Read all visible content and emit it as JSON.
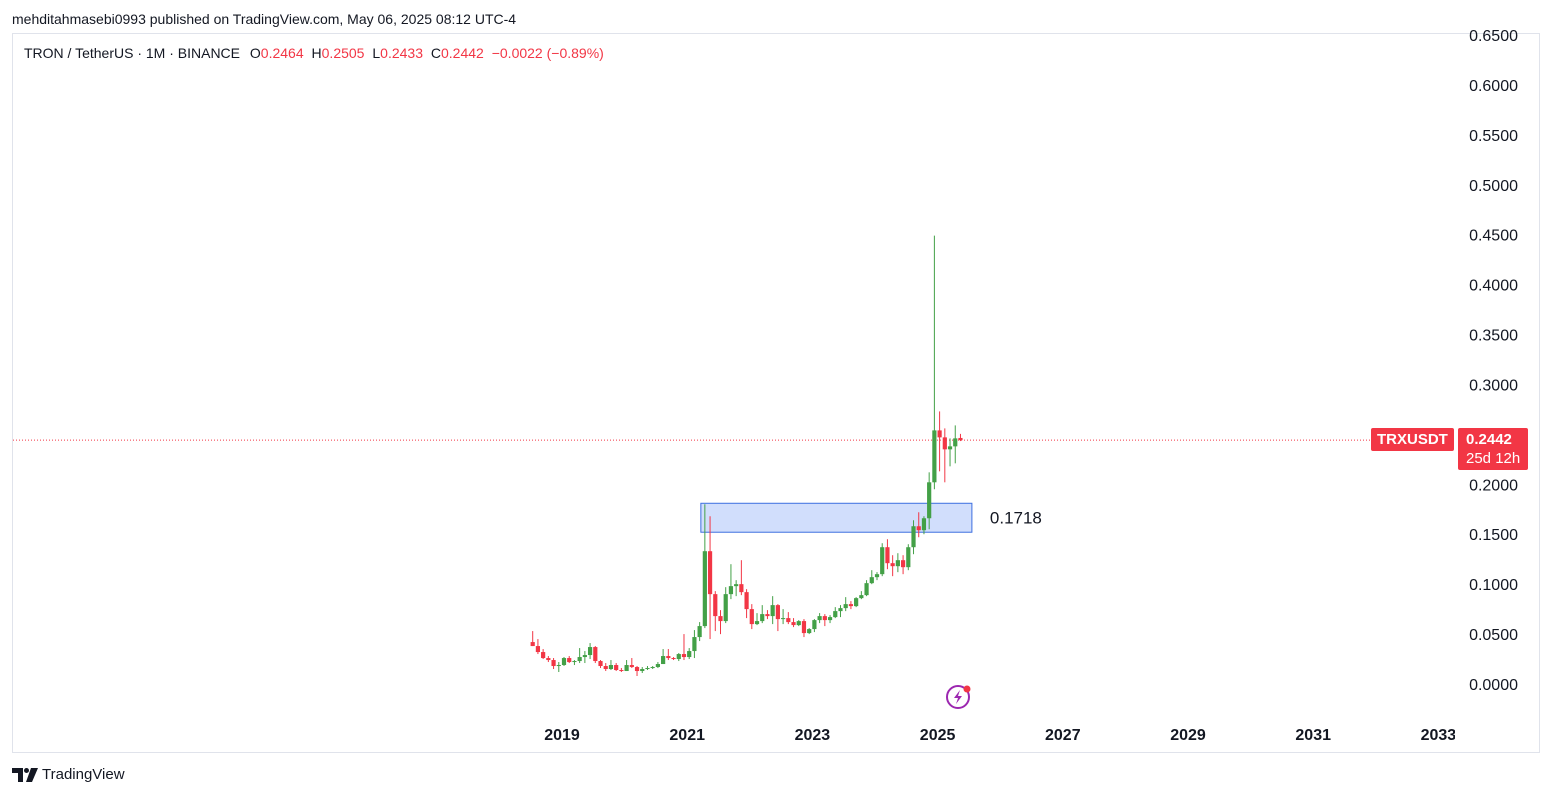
{
  "header": {
    "published_line": "mehditahmasebi0993 published on TradingView.com, May 06, 2025 08:12 UTC-4"
  },
  "legend": {
    "symbol": "TRON / TetherUS · 1M · BINANCE",
    "o_label": "O",
    "o_value": "0.2464",
    "h_label": "H",
    "h_value": "0.2505",
    "l_label": "L",
    "l_value": "0.2433",
    "c_label": "C",
    "c_value": "0.2442",
    "change": "−0.0022 (−0.89%)"
  },
  "badges": {
    "symbol": "TRXUSDT",
    "price": "0.2442",
    "countdown": "25d 12h"
  },
  "footer": {
    "brand": "TradingView"
  },
  "colors": {
    "up": "#26a69a",
    "up_drawn": "#43a047",
    "down": "#f23645",
    "zone_fill": "#c9d8fb",
    "zone_border": "#3d6fe0"
  },
  "chart_data": {
    "type": "candlestick",
    "symbol": "TRXUSDT",
    "interval": "1M",
    "exchange": "BINANCE",
    "yticks": [
      "0.6500",
      "0.6000",
      "0.5500",
      "0.5000",
      "0.4500",
      "0.4000",
      "0.3500",
      "0.3000",
      "0.2500",
      "0.2000",
      "0.1500",
      "0.1000",
      "0.0500",
      "0.0000"
    ],
    "ytick_values": [
      0.65,
      0.6,
      0.55,
      0.5,
      0.45,
      0.4,
      0.35,
      0.3,
      0.25,
      0.2,
      0.15,
      0.1,
      0.05,
      0.0
    ],
    "xticks": [
      "2019",
      "2021",
      "2023",
      "2025",
      "2027",
      "2029",
      "2031",
      "2033"
    ],
    "xtick_years": [
      2019,
      2021,
      2023,
      2025,
      2027,
      2029,
      2031,
      2033
    ],
    "ylim": [
      0.0,
      0.65
    ],
    "last_price": 0.2442,
    "zone": {
      "from": "2021-04",
      "to": "2025-07",
      "low": 0.152,
      "high": 0.181,
      "label": "0.1718"
    },
    "candles": [
      [
        "2018-07",
        0.042,
        0.053,
        0.038,
        0.038
      ],
      [
        "2018-08",
        0.038,
        0.045,
        0.03,
        0.032
      ],
      [
        "2018-09",
        0.032,
        0.035,
        0.025,
        0.026
      ],
      [
        "2018-10",
        0.026,
        0.028,
        0.022,
        0.024
      ],
      [
        "2018-11",
        0.024,
        0.026,
        0.015,
        0.018
      ],
      [
        "2018-12",
        0.018,
        0.022,
        0.012,
        0.019
      ],
      [
        "2019-01",
        0.019,
        0.027,
        0.018,
        0.026
      ],
      [
        "2019-02",
        0.026,
        0.028,
        0.021,
        0.022
      ],
      [
        "2019-03",
        0.022,
        0.024,
        0.019,
        0.023
      ],
      [
        "2019-04",
        0.023,
        0.036,
        0.021,
        0.027
      ],
      [
        "2019-05",
        0.027,
        0.033,
        0.021,
        0.029
      ],
      [
        "2019-06",
        0.029,
        0.041,
        0.025,
        0.037
      ],
      [
        "2019-07",
        0.037,
        0.038,
        0.021,
        0.023
      ],
      [
        "2019-08",
        0.023,
        0.024,
        0.016,
        0.018
      ],
      [
        "2019-09",
        0.018,
        0.021,
        0.013,
        0.015
      ],
      [
        "2019-10",
        0.015,
        0.024,
        0.014,
        0.019
      ],
      [
        "2019-11",
        0.019,
        0.021,
        0.013,
        0.014
      ],
      [
        "2019-12",
        0.014,
        0.016,
        0.012,
        0.013
      ],
      [
        "2020-01",
        0.013,
        0.024,
        0.013,
        0.019
      ],
      [
        "2020-02",
        0.019,
        0.026,
        0.016,
        0.017
      ],
      [
        "2020-03",
        0.017,
        0.018,
        0.008,
        0.013
      ],
      [
        "2020-04",
        0.013,
        0.017,
        0.011,
        0.015
      ],
      [
        "2020-05",
        0.015,
        0.018,
        0.014,
        0.016
      ],
      [
        "2020-06",
        0.016,
        0.018,
        0.015,
        0.017
      ],
      [
        "2020-07",
        0.017,
        0.022,
        0.016,
        0.02
      ],
      [
        "2020-08",
        0.02,
        0.035,
        0.02,
        0.028
      ],
      [
        "2020-09",
        0.028,
        0.035,
        0.024,
        0.026
      ],
      [
        "2020-10",
        0.026,
        0.027,
        0.024,
        0.025
      ],
      [
        "2020-11",
        0.025,
        0.031,
        0.023,
        0.03
      ],
      [
        "2020-12",
        0.03,
        0.05,
        0.024,
        0.027
      ],
      [
        "2021-01",
        0.027,
        0.036,
        0.025,
        0.033
      ],
      [
        "2021-02",
        0.033,
        0.054,
        0.026,
        0.047
      ],
      [
        "2021-03",
        0.047,
        0.062,
        0.043,
        0.058
      ],
      [
        "2021-04",
        0.058,
        0.18,
        0.056,
        0.133
      ],
      [
        "2021-05",
        0.133,
        0.168,
        0.045,
        0.09
      ],
      [
        "2021-06",
        0.09,
        0.093,
        0.053,
        0.068
      ],
      [
        "2021-07",
        0.068,
        0.074,
        0.05,
        0.063
      ],
      [
        "2021-08",
        0.063,
        0.097,
        0.061,
        0.09
      ],
      [
        "2021-09",
        0.09,
        0.12,
        0.085,
        0.098
      ],
      [
        "2021-10",
        0.098,
        0.104,
        0.088,
        0.1
      ],
      [
        "2021-11",
        0.1,
        0.124,
        0.089,
        0.092
      ],
      [
        "2021-12",
        0.092,
        0.095,
        0.066,
        0.075
      ],
      [
        "2022-01",
        0.075,
        0.08,
        0.055,
        0.06
      ],
      [
        "2022-02",
        0.06,
        0.071,
        0.059,
        0.063
      ],
      [
        "2022-03",
        0.063,
        0.079,
        0.061,
        0.07
      ],
      [
        "2022-04",
        0.07,
        0.074,
        0.065,
        0.068
      ],
      [
        "2022-05",
        0.068,
        0.088,
        0.06,
        0.079
      ],
      [
        "2022-06",
        0.079,
        0.08,
        0.053,
        0.065
      ],
      [
        "2022-07",
        0.065,
        0.075,
        0.06,
        0.066
      ],
      [
        "2022-08",
        0.066,
        0.072,
        0.06,
        0.062
      ],
      [
        "2022-09",
        0.062,
        0.066,
        0.057,
        0.059
      ],
      [
        "2022-10",
        0.059,
        0.064,
        0.058,
        0.063
      ],
      [
        "2022-11",
        0.063,
        0.065,
        0.047,
        0.051
      ],
      [
        "2022-12",
        0.051,
        0.056,
        0.05,
        0.055
      ],
      [
        "2023-01",
        0.055,
        0.065,
        0.052,
        0.064
      ],
      [
        "2023-02",
        0.064,
        0.071,
        0.061,
        0.068
      ],
      [
        "2023-03",
        0.068,
        0.07,
        0.058,
        0.064
      ],
      [
        "2023-04",
        0.064,
        0.069,
        0.061,
        0.067
      ],
      [
        "2023-05",
        0.067,
        0.077,
        0.066,
        0.073
      ],
      [
        "2023-06",
        0.073,
        0.079,
        0.067,
        0.076
      ],
      [
        "2023-07",
        0.076,
        0.087,
        0.073,
        0.08
      ],
      [
        "2023-08",
        0.08,
        0.083,
        0.075,
        0.078
      ],
      [
        "2023-09",
        0.078,
        0.087,
        0.077,
        0.086
      ],
      [
        "2023-10",
        0.086,
        0.093,
        0.085,
        0.089
      ],
      [
        "2023-11",
        0.089,
        0.104,
        0.088,
        0.101
      ],
      [
        "2023-12",
        0.101,
        0.114,
        0.1,
        0.107
      ],
      [
        "2024-01",
        0.107,
        0.112,
        0.104,
        0.11
      ],
      [
        "2024-02",
        0.11,
        0.141,
        0.108,
        0.137
      ],
      [
        "2024-03",
        0.137,
        0.145,
        0.115,
        0.121
      ],
      [
        "2024-04",
        0.121,
        0.129,
        0.108,
        0.118
      ],
      [
        "2024-05",
        0.118,
        0.131,
        0.112,
        0.124
      ],
      [
        "2024-06",
        0.124,
        0.129,
        0.11,
        0.117
      ],
      [
        "2024-07",
        0.117,
        0.14,
        0.114,
        0.137
      ],
      [
        "2024-08",
        0.137,
        0.164,
        0.13,
        0.158
      ],
      [
        "2024-09",
        0.158,
        0.172,
        0.147,
        0.154
      ],
      [
        "2024-10",
        0.154,
        0.168,
        0.15,
        0.166
      ],
      [
        "2024-11",
        0.166,
        0.212,
        0.155,
        0.202
      ],
      [
        "2024-12",
        0.202,
        0.449,
        0.195,
        0.254
      ],
      [
        "2025-01",
        0.254,
        0.273,
        0.213,
        0.247
      ],
      [
        "2025-02",
        0.247,
        0.256,
        0.202,
        0.235
      ],
      [
        "2025-03",
        0.235,
        0.246,
        0.218,
        0.238
      ],
      [
        "2025-04",
        0.238,
        0.259,
        0.221,
        0.246
      ],
      [
        "2025-05",
        0.2464,
        0.2505,
        0.2433,
        0.2442
      ]
    ]
  }
}
